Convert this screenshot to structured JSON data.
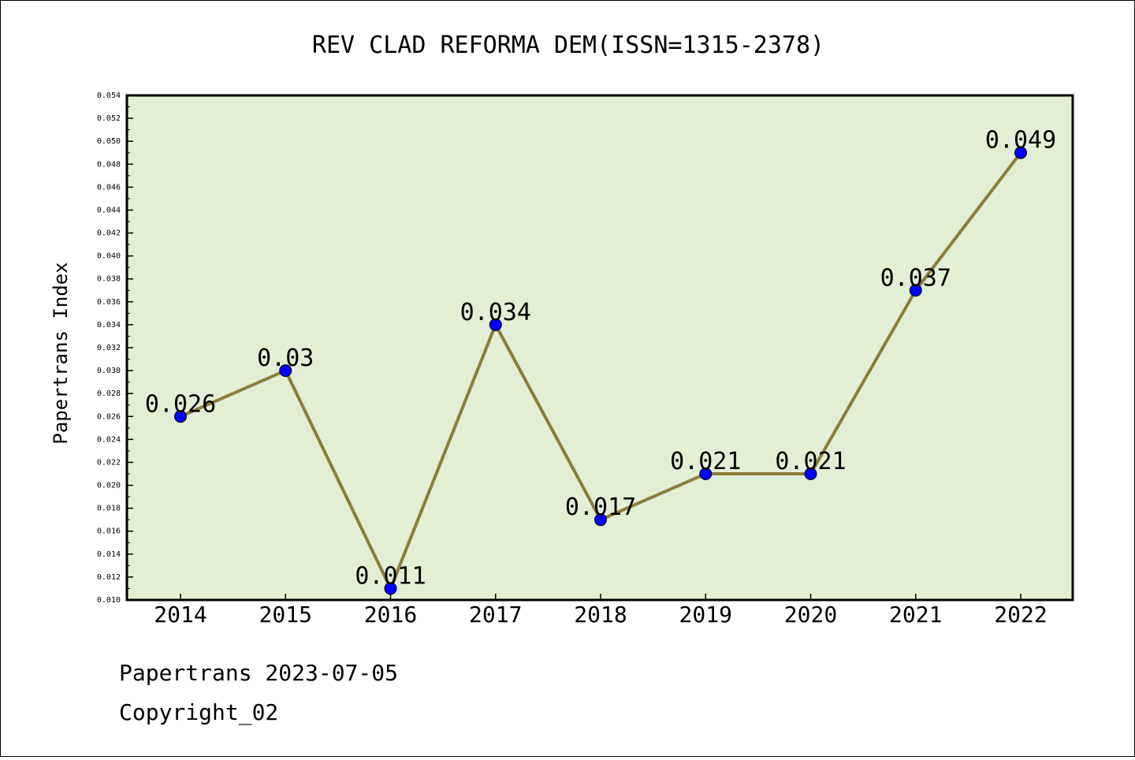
{
  "chart_data": {
    "type": "line",
    "title": "REV CLAD REFORMA DEM(ISSN=1315-2378)",
    "xlabel": "",
    "ylabel": "Papertrans Index",
    "categories": [
      "2014",
      "2015",
      "2016",
      "2017",
      "2018",
      "2019",
      "2020",
      "2021",
      "2022"
    ],
    "series": [
      {
        "values": [
          0.026,
          0.03,
          0.011,
          0.034,
          0.017,
          0.021,
          0.021,
          0.037,
          0.049
        ],
        "labels": [
          "0.026",
          "0.03",
          "0.011",
          "0.034",
          "0.017",
          "0.021",
          "0.021",
          "0.037",
          "0.049"
        ]
      }
    ],
    "ylim": [
      0.01,
      0.054
    ],
    "yticks": [
      "0.010",
      "0.012",
      "0.014",
      "0.016",
      "0.018",
      "0.020",
      "0.022",
      "0.024",
      "0.026",
      "0.028",
      "0.030",
      "0.032",
      "0.034",
      "0.036",
      "0.038",
      "0.040",
      "0.042",
      "0.044",
      "0.046",
      "0.048",
      "0.050",
      "0.052",
      "0.054"
    ],
    "grid": false,
    "colors": {
      "plot_background": "#e2efd5",
      "line": "#8b7d3a",
      "marker": "#0000ff"
    }
  },
  "footer": {
    "date_line": "Papertrans 2023-07-05",
    "copyright": "Copyright_02"
  }
}
